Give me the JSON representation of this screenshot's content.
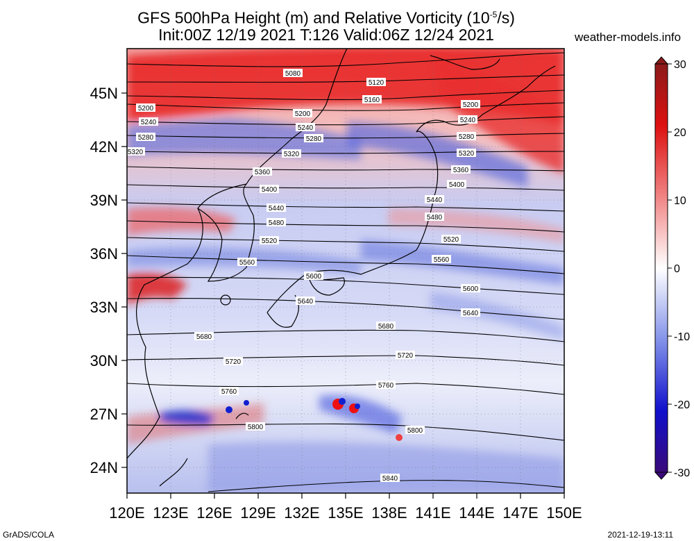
{
  "title": {
    "line1": "GFS 500hPa Height (m) and Relative Vorticity (10",
    "exponent": "-5",
    "line1_end": "/s)",
    "line2": "Init:00Z 12/19 2021 T:126 Valid:06Z 12/24 2021"
  },
  "site": "weather-models.info",
  "footer": {
    "left": "GrADS/COLA",
    "right": "2021-12-19-13:11"
  },
  "map": {
    "lon_range": [
      120,
      150
    ],
    "lat_range": [
      22.5,
      47.5
    ],
    "lon_ticks": [
      "120E",
      "123E",
      "126E",
      "129E",
      "132E",
      "135E",
      "138E",
      "141E",
      "144E",
      "147E",
      "150E"
    ],
    "lat_ticks": [
      "24N",
      "27N",
      "30N",
      "33N",
      "36N",
      "39N",
      "42N",
      "45N"
    ]
  },
  "colorbar": {
    "labels": [
      "30",
      "20",
      "10",
      "0",
      "-10",
      "-20",
      "-30"
    ],
    "colors": {
      "positive": "#cc0000",
      "zero": "#ffffff",
      "negative": "#0000cc"
    }
  },
  "contours": [
    {
      "label": "5080"
    },
    {
      "label": "5120"
    },
    {
      "label": "5160"
    },
    {
      "label": "5200"
    },
    {
      "label": "5240"
    },
    {
      "label": "5280"
    },
    {
      "label": "5320"
    },
    {
      "label": "5360"
    },
    {
      "label": "5400"
    },
    {
      "label": "5440"
    },
    {
      "label": "5480"
    },
    {
      "label": "5520"
    },
    {
      "label": "5560"
    },
    {
      "label": "5600"
    },
    {
      "label": "5640"
    },
    {
      "label": "5680"
    },
    {
      "label": "5720"
    },
    {
      "label": "5760"
    },
    {
      "label": "5800"
    },
    {
      "label": "5840"
    }
  ]
}
